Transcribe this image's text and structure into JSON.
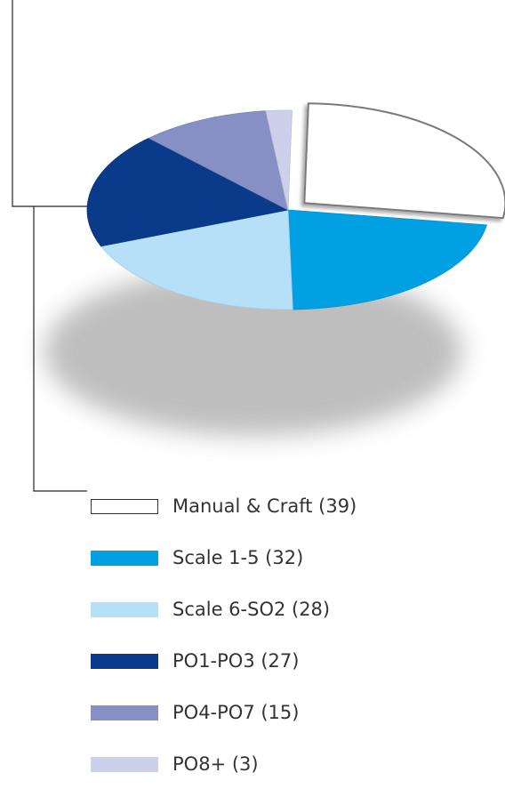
{
  "chart_data": {
    "type": "pie",
    "title": "",
    "slices": [
      {
        "label": "Manual & Craft (39)",
        "value": 39,
        "color": "#ffffff",
        "exploded": true
      },
      {
        "label": "Scale 1-5 (32)",
        "value": 32,
        "color": "#00a0e3"
      },
      {
        "label": "Scale 6-SO2 (28)",
        "value": 28,
        "color": "#b5e0f7"
      },
      {
        "label": "PO1-PO3 (27)",
        "value": 27,
        "color": "#0a3a8a"
      },
      {
        "label": "PO4-PO7 (15)",
        "value": 15,
        "color": "#8790c4"
      },
      {
        "label": "PO8+ (3)",
        "value": 3,
        "color": "#ccd0ea"
      }
    ],
    "legend_placement": "bottom"
  }
}
